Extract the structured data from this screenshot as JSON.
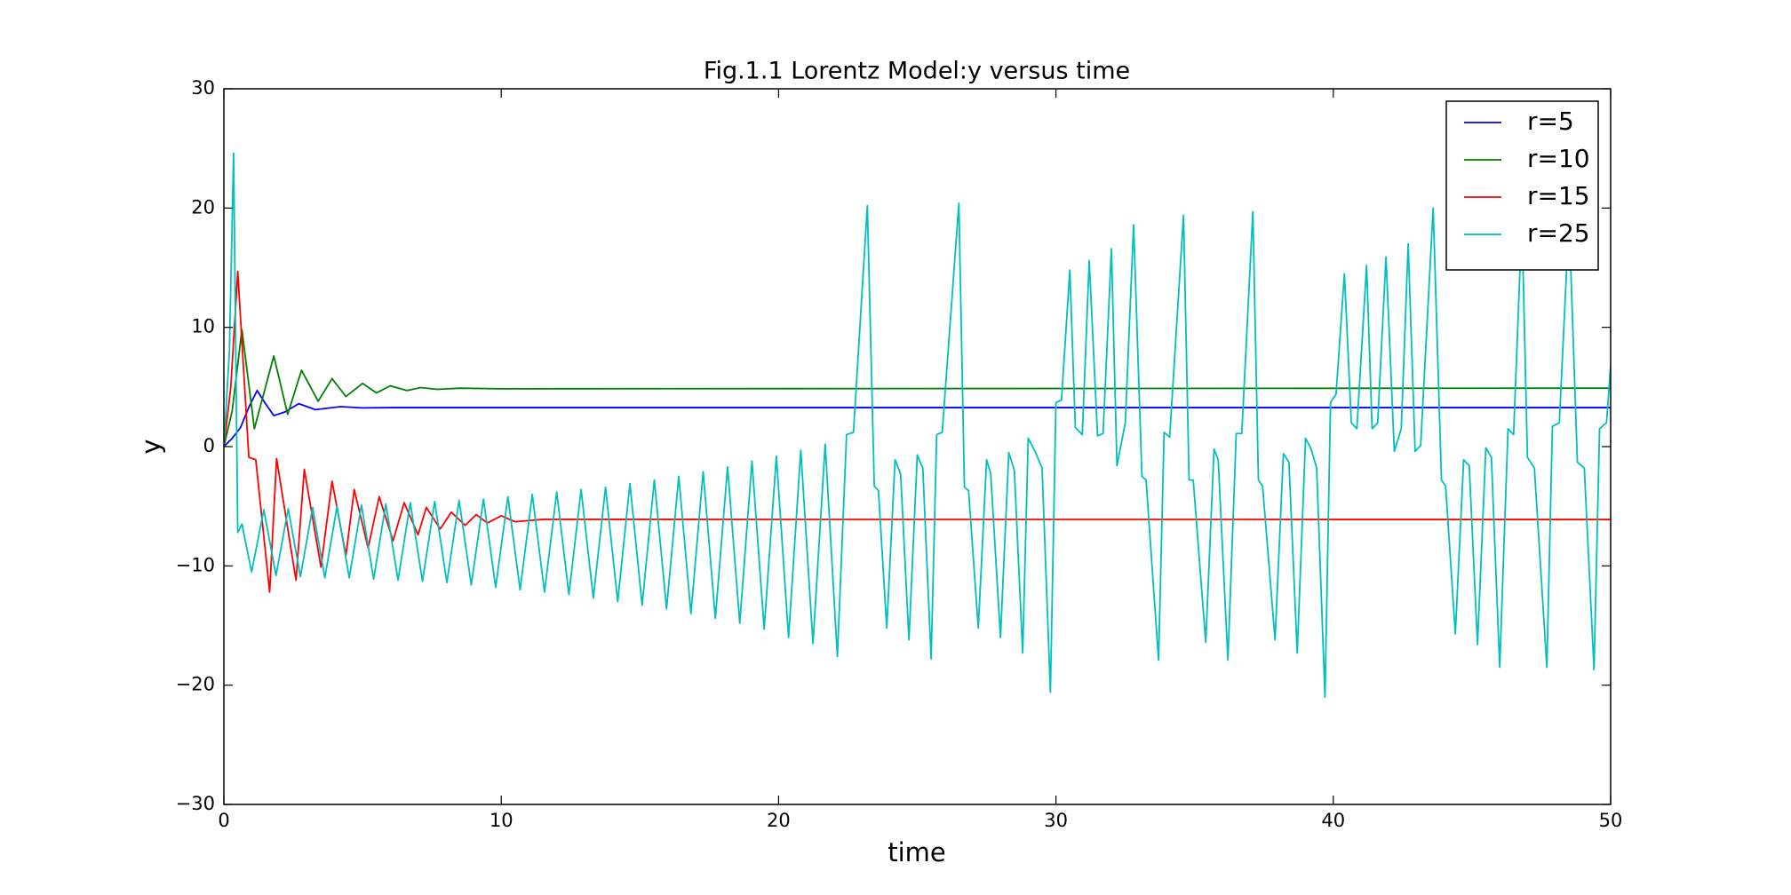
{
  "chart_data": {
    "type": "line",
    "title": "Fig.1.1 Lorentz Model:y versus time",
    "xlabel": "time",
    "ylabel": "y",
    "xlim": [
      0,
      50
    ],
    "xticks": [
      0,
      10,
      20,
      30,
      40,
      50
    ],
    "ylim": [
      -30,
      30
    ],
    "yticks": [
      {
        "value": -30,
        "label": "−30"
      },
      {
        "value": -20,
        "label": "−20"
      },
      {
        "value": -10,
        "label": "−10"
      },
      0,
      10,
      20,
      30
    ],
    "legend": "upper right",
    "series": [
      {
        "name": "r=5",
        "color": "#0000ff",
        "x": [
          0,
          0.3,
          0.6,
          0.9,
          1.2,
          1.5,
          1.8,
          2.2,
          2.7,
          3.3,
          4.2,
          5,
          6,
          50
        ],
        "values": [
          0,
          0.7,
          1.6,
          3.3,
          4.7,
          3.6,
          2.6,
          2.9,
          3.6,
          3.1,
          3.35,
          3.25,
          3.27,
          3.27
        ]
      },
      {
        "name": "r=10",
        "color": "#008000",
        "x": [
          0,
          0.3,
          0.65,
          1.1,
          1.8,
          2.3,
          2.8,
          3.4,
          3.9,
          4.4,
          5.0,
          5.5,
          6.0,
          6.6,
          7.1,
          7.7,
          8.5,
          10,
          50
        ],
        "values": [
          0,
          3,
          9.8,
          1.5,
          7.6,
          2.7,
          6.4,
          3.8,
          5.7,
          4.2,
          5.3,
          4.5,
          5.1,
          4.7,
          4.95,
          4.8,
          4.9,
          4.85,
          4.9
        ]
      },
      {
        "name": "r=15",
        "color": "#ff0000",
        "x": [
          0,
          0.25,
          0.5,
          0.9,
          1.15,
          1.65,
          1.9,
          2.6,
          2.9,
          3.5,
          3.9,
          4.4,
          4.7,
          5.2,
          5.6,
          6.1,
          6.5,
          7.0,
          7.3,
          7.8,
          8.2,
          8.7,
          9.1,
          9.5,
          10.0,
          10.5,
          11.5,
          50
        ],
        "values": [
          0,
          5,
          14.7,
          -0.9,
          -1.1,
          -12.2,
          -1,
          -11.2,
          -1.9,
          -10.1,
          -2.9,
          -9.1,
          -3.6,
          -8.5,
          -4.2,
          -7.9,
          -4.7,
          -7.4,
          -5.1,
          -6.9,
          -5.5,
          -6.6,
          -5.7,
          -6.4,
          -5.8,
          -6.3,
          -6.1,
          -6.11
        ]
      },
      {
        "name": "r=25",
        "color": "#00bfbf",
        "x": [
          0,
          0.2,
          0.35,
          0.5,
          0.65,
          1.0,
          1.44,
          1.88,
          2.32,
          2.76,
          3.2,
          3.64,
          4.08,
          4.52,
          4.96,
          5.4,
          5.84,
          6.28,
          6.72,
          7.16,
          7.6,
          8.04,
          8.48,
          8.92,
          9.36,
          9.8,
          10.24,
          10.68,
          11.12,
          11.56,
          12.0,
          12.44,
          12.88,
          13.32,
          13.76,
          14.2,
          14.64,
          15.08,
          15.52,
          15.96,
          16.4,
          16.84,
          17.28,
          17.72,
          18.16,
          18.6,
          19.04,
          19.48,
          19.92,
          20.36,
          20.8,
          21.24,
          21.68,
          22.12,
          22.45,
          22.7,
          23.2,
          23.45,
          23.6,
          23.9,
          24.2,
          24.4,
          24.7,
          25.0,
          25.2,
          25.5,
          25.7,
          25.9,
          26.5,
          26.7,
          26.85,
          27.2,
          27.5,
          27.65,
          28.0,
          28.3,
          28.5,
          28.8,
          29.0,
          29.25,
          29.5,
          29.8,
          30.0,
          30.2,
          30.5,
          30.7,
          30.95,
          31.2,
          31.5,
          31.7,
          32.0,
          32.2,
          32.5,
          32.8,
          33.1,
          33.25,
          33.7,
          33.9,
          34.1,
          34.6,
          34.8,
          34.95,
          35.4,
          35.7,
          35.85,
          36.2,
          36.5,
          36.7,
          37.1,
          37.3,
          37.45,
          37.9,
          38.2,
          38.4,
          38.7,
          39.0,
          39.2,
          39.4,
          39.7,
          39.9,
          40.1,
          40.4,
          40.65,
          40.85,
          41.2,
          41.4,
          41.6,
          41.9,
          42.2,
          42.45,
          42.7,
          42.95,
          43.15,
          43.6,
          43.9,
          44.05,
          44.4,
          44.7,
          44.9,
          45.2,
          45.5,
          45.7,
          46.0,
          46.3,
          46.5,
          46.8,
          47.0,
          47.25,
          47.7,
          47.9,
          48.15,
          48.5,
          48.8,
          49.05,
          49.4,
          49.6,
          49.85,
          50
        ],
        "values": [
          0,
          8,
          24.6,
          -7.2,
          -6.5,
          -10.5,
          -5.3,
          -10.8,
          -5.2,
          -10.9,
          -5.1,
          -11,
          -5,
          -11,
          -4.9,
          -11.1,
          -4.8,
          -11.2,
          -4.7,
          -11.3,
          -4.6,
          -11.4,
          -4.5,
          -11.6,
          -4.4,
          -11.8,
          -4.2,
          -12,
          -4,
          -12.2,
          -3.8,
          -12.4,
          -3.6,
          -12.7,
          -3.4,
          -13,
          -3.1,
          -13.3,
          -2.8,
          -13.6,
          -2.5,
          -14,
          -2.1,
          -14.4,
          -1.7,
          -14.8,
          -1.2,
          -15.3,
          -0.8,
          -16,
          -0.3,
          -16.5,
          0.2,
          -17.6,
          1.0,
          1.2,
          20.2,
          -3.3,
          -3.7,
          -15.2,
          -1.1,
          -2.3,
          -16.2,
          -0.7,
          -1.8,
          -17.8,
          1,
          1.2,
          20.4,
          -3.4,
          -3.7,
          -15.2,
          -1.1,
          -2.3,
          -16,
          -0.5,
          -2,
          -17.3,
          0.7,
          -0.4,
          -1.8,
          -20.6,
          3.7,
          3.9,
          14.8,
          1.6,
          1.0,
          15.6,
          0.9,
          1.1,
          16.6,
          -1.6,
          2,
          18.6,
          -2.5,
          -2.8,
          -17.9,
          1.2,
          0.8,
          19.4,
          -2.8,
          -2.8,
          -16.4,
          -0.2,
          -1.1,
          -17.9,
          1.1,
          1.1,
          19.7,
          -2.8,
          -3.3,
          -16.2,
          -0.6,
          -1.3,
          -17.3,
          0.7,
          -0.2,
          -1.8,
          -21,
          3.7,
          4.4,
          14.5,
          2,
          1.5,
          15.2,
          1.5,
          2,
          15.9,
          -0.4,
          1.5,
          17,
          -0.4,
          0.1,
          20,
          -2.8,
          -3.3,
          -15.7,
          -1.1,
          -1.6,
          -16.6,
          -0.1,
          -0.9,
          -18.5,
          1.5,
          1.0,
          19,
          -0.9,
          -1.8,
          -18.5,
          1.7,
          2,
          19.2,
          -1.3,
          -1.8,
          -18.7,
          1.5,
          2,
          6.8
        ]
      }
    ]
  }
}
